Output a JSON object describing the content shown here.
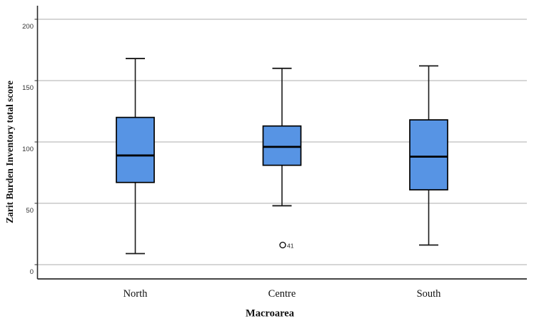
{
  "figure": {
    "background": "#ffffff"
  },
  "chart_data": {
    "type": "boxplot",
    "title": "",
    "xlabel": "Macroarea",
    "ylabel": "Zarit Burden Inventory total score",
    "categories": [
      "North",
      "Centre",
      "South"
    ],
    "y_axis": {
      "min": 0,
      "max": 200,
      "ticks": [
        0,
        50,
        100,
        150,
        200
      ]
    },
    "grid": "horizontal",
    "legend": "none",
    "series": [
      {
        "category": "North",
        "whisker_low": 9,
        "q1": 67,
        "median": 89,
        "q3": 120,
        "whisker_high": 168,
        "outliers": []
      },
      {
        "category": "Centre",
        "whisker_low": 48,
        "q1": 81,
        "median": 96,
        "q3": 113,
        "whisker_high": 160,
        "outliers": [
          {
            "value": 16,
            "label": "41"
          }
        ]
      },
      {
        "category": "South",
        "whisker_low": 16,
        "q1": 61,
        "median": 88,
        "q3": 118,
        "whisker_high": 162,
        "outliers": []
      }
    ],
    "colors": {
      "box_fill": "#5794E4",
      "box_stroke": "#000000",
      "median": "#000000",
      "whisker": "#1a1a1a",
      "gridline": "#c9c9c9",
      "axis": "#2b2b2b",
      "tick_label": "#333333",
      "category_label": "#111111",
      "outlier_stroke": "#000000",
      "outlier_fill": "#ffffff",
      "outlier_label": "#222222"
    }
  }
}
